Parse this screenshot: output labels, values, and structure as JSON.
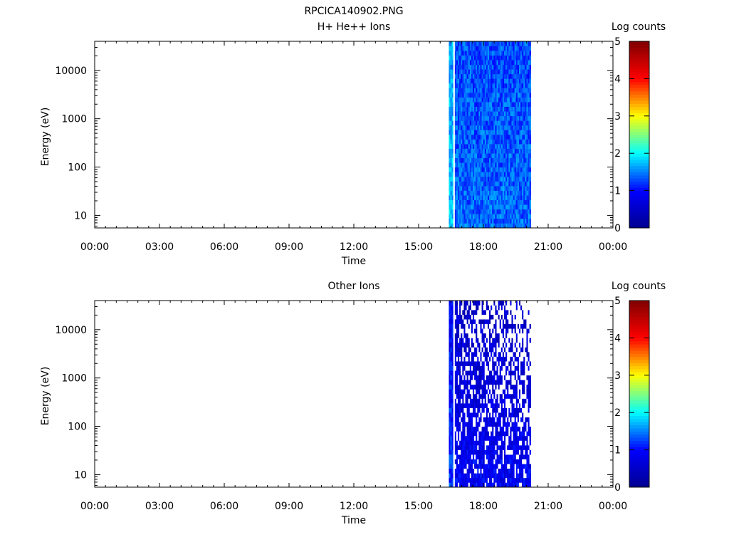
{
  "figure_title": "RPCICA140902.PNG",
  "colors": {
    "colormap": [
      "#00008f",
      "#0000ff",
      "#00ffff",
      "#ffff00",
      "#ff0000",
      "#800000"
    ]
  },
  "chart_data": [
    {
      "type": "heatmap",
      "title": "H+ He++ Ions",
      "xlabel": "Time",
      "ylabel": "Energy (eV)",
      "colorbar_label": "Log counts",
      "x_ticks": [
        "00:00",
        "03:00",
        "06:00",
        "09:00",
        "12:00",
        "15:00",
        "18:00",
        "21:00",
        "00:00"
      ],
      "y_ticks": [
        "10",
        "100",
        "1000",
        "10000"
      ],
      "colorbar_ticks": [
        "0",
        "1",
        "2",
        "3",
        "4",
        "5"
      ],
      "y_scale": "log",
      "ylim": [
        5.5,
        40000
      ],
      "xlim_hours": [
        0,
        24
      ],
      "clim": [
        0,
        5
      ],
      "data_interval_hours": [
        16.4,
        20.2
      ],
      "gap_hours": [
        16.6
      ],
      "low_energy_log_counts": 1.4,
      "high_energy_log_counts": 1.3,
      "sparse": false
    },
    {
      "type": "heatmap",
      "title": "Other Ions",
      "xlabel": "Time",
      "ylabel": "Energy (eV)",
      "colorbar_label": "Log counts",
      "x_ticks": [
        "00:00",
        "03:00",
        "06:00",
        "09:00",
        "12:00",
        "15:00",
        "18:00",
        "21:00",
        "00:00"
      ],
      "y_ticks": [
        "10",
        "100",
        "1000",
        "10000"
      ],
      "colorbar_ticks": [
        "0",
        "1",
        "2",
        "3",
        "4",
        "5"
      ],
      "y_scale": "log",
      "ylim": [
        5.5,
        40000
      ],
      "xlim_hours": [
        0,
        24
      ],
      "clim": [
        0,
        5
      ],
      "data_interval_hours": [
        16.4,
        20.2
      ],
      "gap_hours": [
        16.6
      ],
      "low_energy_log_counts": 0.9,
      "high_energy_log_counts": 0.5,
      "sparse": true
    }
  ]
}
